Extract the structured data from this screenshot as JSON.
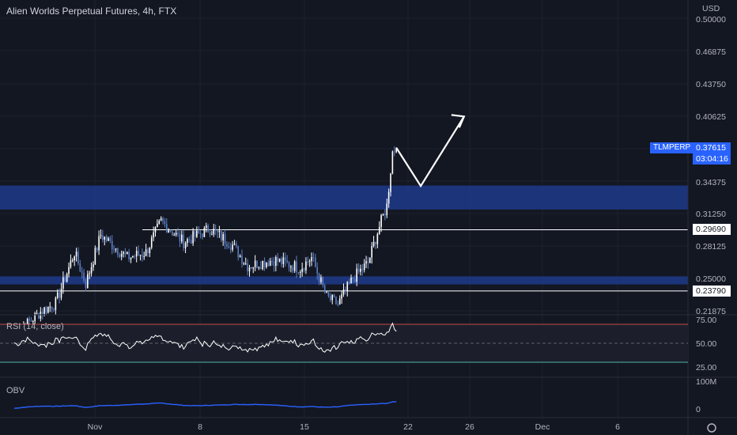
{
  "header": {
    "title": "Alien Worlds Perpetual Futures, 4h, FTX"
  },
  "currency": "USD",
  "price_axis": {
    "ticks": [
      "0.50000",
      "0.46875",
      "0.43750",
      "0.40625",
      "0.34375",
      "0.31250",
      "0.28125",
      "0.25000",
      "0.21875"
    ]
  },
  "time_axis": {
    "ticks": [
      "Nov",
      "8",
      "15",
      "22",
      "26",
      "Dec",
      "6"
    ]
  },
  "symbol_tag": {
    "symbol": "TLMPERP",
    "price": "0.37615",
    "countdown": "03:04:16"
  },
  "level_tags": [
    "0.29690",
    "0.23790"
  ],
  "rsi": {
    "label": "RSI (14, close)",
    "ticks": [
      "75.00",
      "50.00",
      "25.00"
    ]
  },
  "obv": {
    "label": "OBV",
    "ticks": [
      "100M",
      "0"
    ]
  },
  "colors": {
    "background": "#131722",
    "up": "#ffffff",
    "down": "#5b7fc4",
    "zone": "#1e3a8a",
    "level_line": "#ffffff",
    "tag_blue": "#2962ff",
    "rsi_line": "#ffffff",
    "rsi_upper": "#c34a4a",
    "rsi_lower": "#4db6ac",
    "obv_line": "#2962ff"
  },
  "chart_data": {
    "type": "candlestick",
    "title": "Alien Worlds Perpetual Futures, 4h, FTX",
    "y_scale": {
      "min": 0.2,
      "max": 0.52,
      "unit": "USD"
    },
    "zones": [
      {
        "from": 0.3164,
        "to": 0.3395
      },
      {
        "from": 0.2442,
        "to": 0.252
      }
    ],
    "levels": [
      0.2969,
      0.2379
    ],
    "last_price": 0.37615,
    "anchors": [
      {
        "t": 0,
        "p": 0.195
      },
      {
        "t": 14,
        "p": 0.218
      },
      {
        "t": 22,
        "p": 0.226
      },
      {
        "t": 32,
        "p": 0.275
      },
      {
        "t": 38,
        "p": 0.245
      },
      {
        "t": 46,
        "p": 0.292
      },
      {
        "t": 60,
        "p": 0.27
      },
      {
        "t": 70,
        "p": 0.275
      },
      {
        "t": 78,
        "p": 0.305
      },
      {
        "t": 90,
        "p": 0.285
      },
      {
        "t": 104,
        "p": 0.298
      },
      {
        "t": 116,
        "p": 0.282
      },
      {
        "t": 124,
        "p": 0.262
      },
      {
        "t": 138,
        "p": 0.268
      },
      {
        "t": 152,
        "p": 0.26
      },
      {
        "t": 158,
        "p": 0.27
      },
      {
        "t": 166,
        "p": 0.232
      },
      {
        "t": 172,
        "p": 0.225
      },
      {
        "t": 180,
        "p": 0.25
      },
      {
        "t": 188,
        "p": 0.265
      },
      {
        "t": 194,
        "p": 0.3
      },
      {
        "t": 198,
        "p": 0.32
      },
      {
        "t": 201,
        "p": 0.372
      },
      {
        "t": 203,
        "p": 0.376
      }
    ],
    "projection": [
      {
        "t": 203,
        "p": 0.376
      },
      {
        "t": 216,
        "p": 0.339
      },
      {
        "t": 239,
        "p": 0.406
      }
    ]
  }
}
